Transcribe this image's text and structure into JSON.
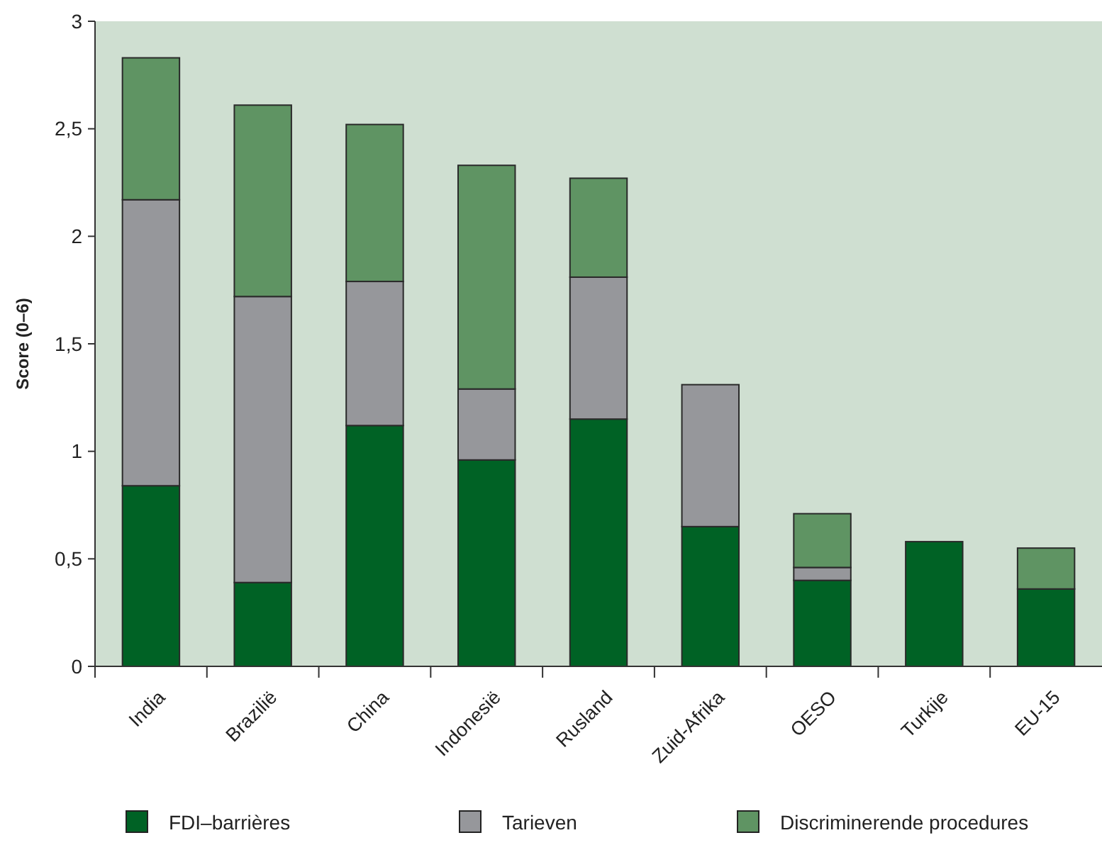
{
  "chart_data": {
    "type": "bar",
    "stacked": true,
    "ylabel": "Score (0–6)",
    "categories": [
      "India",
      "Brazilië",
      "China",
      "Indonesië",
      "Rusland",
      "Zuid-Afrika",
      "OESO",
      "Turkije",
      "EU-15"
    ],
    "series": [
      {
        "name": "FDI–barrières",
        "color": "#006225",
        "values": [
          0.84,
          0.39,
          1.12,
          0.96,
          1.15,
          0.65,
          0.4,
          0.58,
          0.36
        ]
      },
      {
        "name": "Tarieven",
        "color": "#96979b",
        "values": [
          1.33,
          1.33,
          0.67,
          0.33,
          0.66,
          0.66,
          0.06,
          0,
          0
        ]
      },
      {
        "name": "Discriminerende procedures",
        "color": "#5f9463",
        "values": [
          0.66,
          0.89,
          0.73,
          1.04,
          0.46,
          0,
          0.25,
          0,
          0.19
        ]
      }
    ],
    "ylim": [
      0,
      3
    ],
    "yticks": [
      0,
      {
        "value": 0.5,
        "label": "0,5"
      },
      1,
      {
        "value": 1.5,
        "label": "1,5"
      },
      2,
      {
        "value": 2.5,
        "label": "2,5"
      },
      3
    ],
    "grid": false,
    "legend": "bottom"
  }
}
